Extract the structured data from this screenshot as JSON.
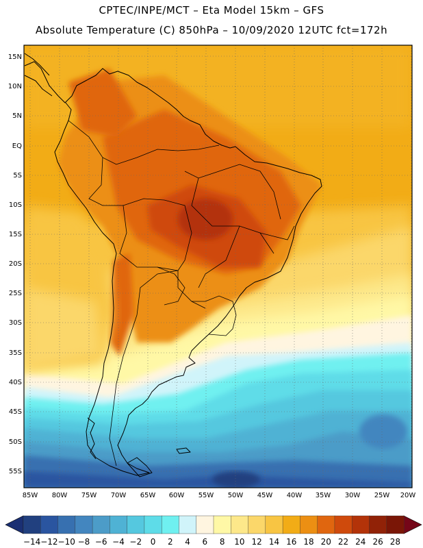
{
  "header": {
    "line1": "CPTEC/INPE/MCT –  Eta Model 15km – GFS",
    "line2": "Absolute Temperature (C) 850hPa – 10/09/2020 12UTC fct=172h"
  },
  "map": {
    "lat_labels": [
      "15N",
      "10N",
      "5N",
      "EQ",
      "5S",
      "10S",
      "15S",
      "20S",
      "25S",
      "30S",
      "35S",
      "40S",
      "45S",
      "50S",
      "55S"
    ],
    "lon_labels": [
      "85W",
      "80W",
      "75W",
      "70W",
      "65W",
      "60W",
      "55W",
      "50W",
      "45W",
      "40W",
      "35W",
      "30W",
      "25W",
      "20W"
    ],
    "extent": {
      "lon_min": -86,
      "lon_max": -19,
      "lat_min": -58,
      "lat_max": 16
    }
  },
  "colorbar": {
    "labels": [
      "-14",
      "-12",
      "-10",
      "-8",
      "-6",
      "-4",
      "-2",
      "0",
      "2",
      "4",
      "6",
      "8",
      "10",
      "12",
      "14",
      "16",
      "18",
      "20",
      "22",
      "24",
      "26",
      "28"
    ],
    "colors": [
      "#21407f",
      "#2a55a0",
      "#3770b0",
      "#4386bf",
      "#4c9cc8",
      "#4fb2d4",
      "#55c8df",
      "#5edce8",
      "#6ff0f0",
      "#d0f4fa",
      "#fff5e0",
      "#fff8a6",
      "#fde88a",
      "#fbd76a",
      "#f8c543",
      "#f2ac16",
      "#ec8f13",
      "#e0660f",
      "#cf4a0c",
      "#b33309",
      "#912207",
      "#7a1606"
    ],
    "under_color": "#1a2f73",
    "over_color": "#750618"
  }
}
